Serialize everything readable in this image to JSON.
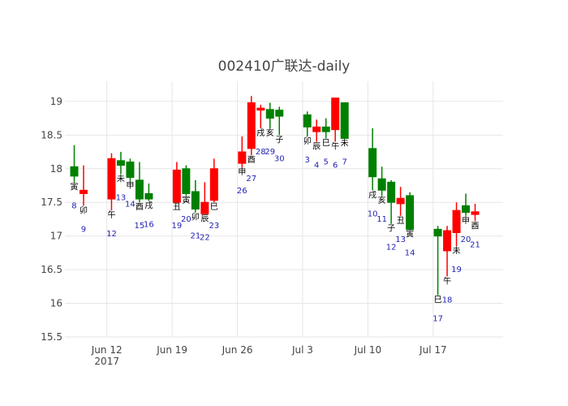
{
  "chart_data": {
    "type": "candlestick",
    "title": "002410广联达-daily",
    "ylim": [
      15.5,
      19.3
    ],
    "yticks": [
      15.5,
      16,
      16.5,
      17,
      17.5,
      18,
      18.5,
      19
    ],
    "ytick_labels": [
      "15.5",
      "16",
      "16.5",
      "17",
      "17.5",
      "18",
      "18.5",
      "19"
    ],
    "xlim": [
      "2017-06-07T12:00",
      "2017-07-24T12:00"
    ],
    "xticks": [
      {
        "date": "2017-06-12",
        "label": "Jun 12",
        "sublabel": "2017"
      },
      {
        "date": "2017-06-19",
        "label": "Jun 19",
        "sublabel": ""
      },
      {
        "date": "2017-06-26",
        "label": "Jun 26",
        "sublabel": ""
      },
      {
        "date": "2017-07-03",
        "label": "Jul 3",
        "sublabel": ""
      },
      {
        "date": "2017-07-10",
        "label": "Jul 10",
        "sublabel": ""
      },
      {
        "date": "2017-07-17",
        "label": "Jul 17",
        "sublabel": ""
      }
    ],
    "colors": {
      "up": "#ff0000",
      "down": "#008000",
      "grid": "#e6e6e6",
      "day_label": "#1f1fb4"
    },
    "candles": [
      {
        "date": "2017-06-08",
        "open": 18.03,
        "high": 18.35,
        "low": 17.8,
        "close": 17.89,
        "zhi": "寅",
        "day": "8"
      },
      {
        "date": "2017-06-09",
        "open": 17.63,
        "high": 18.05,
        "low": 17.45,
        "close": 17.68,
        "zhi": "卯",
        "day": "9"
      },
      {
        "date": "2017-06-12",
        "open": 17.55,
        "high": 18.23,
        "low": 17.38,
        "close": 18.15,
        "zhi": "午",
        "day": "12"
      },
      {
        "date": "2017-06-13",
        "open": 18.12,
        "high": 18.25,
        "low": 17.92,
        "close": 18.05,
        "zhi": "未",
        "day": "13"
      },
      {
        "date": "2017-06-14",
        "open": 18.1,
        "high": 18.15,
        "low": 17.82,
        "close": 17.87,
        "zhi": "申",
        "day": "14"
      },
      {
        "date": "2017-06-15",
        "open": 17.83,
        "high": 18.1,
        "low": 17.5,
        "close": 17.55,
        "zhi": "酉",
        "day": "15"
      },
      {
        "date": "2017-06-16",
        "open": 17.63,
        "high": 17.78,
        "low": 17.52,
        "close": 17.55,
        "zhi": "戌",
        "day": "16"
      },
      {
        "date": "2017-06-19",
        "open": 17.5,
        "high": 18.1,
        "low": 17.5,
        "close": 17.98,
        "zhi": "丑",
        "day": "19"
      },
      {
        "date": "2017-06-20",
        "open": 18.0,
        "high": 18.05,
        "low": 17.6,
        "close": 17.63,
        "zhi": "寅",
        "day": "20"
      },
      {
        "date": "2017-06-21",
        "open": 17.66,
        "high": 17.83,
        "low": 17.35,
        "close": 17.4,
        "zhi": "卯",
        "day": "21"
      },
      {
        "date": "2017-06-22",
        "open": 17.33,
        "high": 17.8,
        "low": 17.33,
        "close": 17.5,
        "zhi": "辰",
        "day": "22"
      },
      {
        "date": "2017-06-23",
        "open": 17.53,
        "high": 18.15,
        "low": 17.5,
        "close": 18.0,
        "zhi": "巳",
        "day": "23"
      },
      {
        "date": "2017-06-26",
        "open": 18.08,
        "high": 18.48,
        "low": 18.02,
        "close": 18.25,
        "zhi": "申",
        "day": "26"
      },
      {
        "date": "2017-06-27",
        "open": 18.3,
        "high": 19.08,
        "low": 18.2,
        "close": 18.98,
        "zhi": "酉",
        "day": "27"
      },
      {
        "date": "2017-06-28",
        "open": 18.87,
        "high": 18.95,
        "low": 18.6,
        "close": 18.9,
        "zhi": "戌",
        "day": "28"
      },
      {
        "date": "2017-06-29",
        "open": 18.88,
        "high": 18.98,
        "low": 18.6,
        "close": 18.75,
        "zhi": "亥",
        "day": "29"
      },
      {
        "date": "2017-06-30",
        "open": 18.87,
        "high": 18.92,
        "low": 18.5,
        "close": 18.78,
        "zhi": "子",
        "day": "30"
      },
      {
        "date": "2017-07-03",
        "open": 18.8,
        "high": 18.85,
        "low": 18.48,
        "close": 18.62,
        "zhi": "卯",
        "day": "3"
      },
      {
        "date": "2017-07-04",
        "open": 18.55,
        "high": 18.73,
        "low": 18.4,
        "close": 18.62,
        "zhi": "辰",
        "day": "4"
      },
      {
        "date": "2017-07-05",
        "open": 18.62,
        "high": 18.75,
        "low": 18.45,
        "close": 18.55,
        "zhi": "巳",
        "day": "5"
      },
      {
        "date": "2017-07-06",
        "open": 18.58,
        "high": 19.05,
        "low": 18.4,
        "close": 19.05,
        "zhi": "午",
        "day": "6"
      },
      {
        "date": "2017-07-07",
        "open": 18.98,
        "high": 18.98,
        "low": 18.45,
        "close": 18.45,
        "zhi": "未",
        "day": "7"
      },
      {
        "date": "2017-07-10",
        "open": 18.3,
        "high": 18.6,
        "low": 17.68,
        "close": 17.88,
        "zhi": "戌",
        "day": "10"
      },
      {
        "date": "2017-07-11",
        "open": 17.85,
        "high": 18.03,
        "low": 17.6,
        "close": 17.68,
        "zhi": "亥",
        "day": "11"
      },
      {
        "date": "2017-07-12",
        "open": 17.8,
        "high": 17.83,
        "low": 17.18,
        "close": 17.5,
        "zhi": "子",
        "day": "12"
      },
      {
        "date": "2017-07-13",
        "open": 17.48,
        "high": 17.73,
        "low": 17.3,
        "close": 17.56,
        "zhi": "丑",
        "day": "13"
      },
      {
        "date": "2017-07-14",
        "open": 17.6,
        "high": 17.65,
        "low": 17.1,
        "close": 17.1,
        "zhi": "寅",
        "day": "14"
      },
      {
        "date": "2017-07-17",
        "open": 17.1,
        "high": 17.15,
        "low": 16.12,
        "close": 17.0,
        "zhi": "巳",
        "day": "17"
      },
      {
        "date": "2017-07-18",
        "open": 16.78,
        "high": 17.15,
        "low": 16.4,
        "close": 17.08,
        "zhi": "午",
        "day": "18"
      },
      {
        "date": "2017-07-19",
        "open": 17.05,
        "high": 17.5,
        "low": 16.85,
        "close": 17.38,
        "zhi": "未",
        "day": "19"
      },
      {
        "date": "2017-07-20",
        "open": 17.45,
        "high": 17.63,
        "low": 17.3,
        "close": 17.35,
        "zhi": "申",
        "day": "20"
      },
      {
        "date": "2017-07-21",
        "open": 17.32,
        "high": 17.48,
        "low": 17.22,
        "close": 17.36,
        "zhi": "酉",
        "day": "21"
      }
    ]
  }
}
